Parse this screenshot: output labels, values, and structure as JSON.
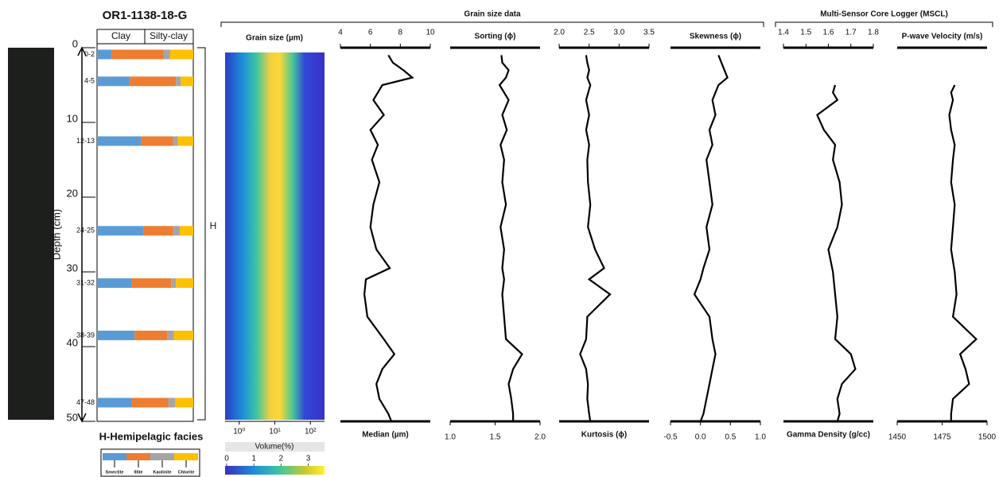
{
  "groups": [
    {
      "title": "Grain size data"
    },
    {
      "title": "Multi-Sensor Core Logger (MSCL)"
    }
  ],
  "chart_data": [
    {
      "type": "clay",
      "title": "OR1-1138-18-G",
      "ylabel": "Depth (cm)",
      "columns": [
        "Clay",
        "Silty-clay"
      ],
      "facies": "H",
      "caption": "H-Hemipelagic facies",
      "ylim": [
        0,
        50
      ],
      "yticks": [
        0,
        10,
        20,
        30,
        40,
        50
      ],
      "xlim": [
        0,
        100
      ],
      "categories": [
        "0-2",
        "4-5",
        "12-13",
        "24-25",
        "31-32",
        "38-39",
        "47-48"
      ],
      "y": [
        0.9,
        4.5,
        12.5,
        24.5,
        31.5,
        38.5,
        47.5
      ],
      "series": [
        {
          "name": "Smectite",
          "color": "#5b9bd5",
          "values": [
            15,
            34,
            46,
            48,
            36,
            39,
            36
          ]
        },
        {
          "name": "Illite",
          "color": "#ed7d31",
          "values": [
            54,
            48,
            33,
            31,
            41,
            34,
            38
          ]
        },
        {
          "name": "Kaolinite",
          "color": "#a5a5a5",
          "values": [
            7,
            5,
            5,
            7,
            5,
            7,
            7
          ]
        },
        {
          "name": "Chlorite",
          "color": "#ffc000",
          "values": [
            24,
            13,
            16,
            14,
            18,
            20,
            19
          ]
        }
      ]
    },
    {
      "type": "heatmap",
      "title": "Grain size (µm)",
      "xscale": "log",
      "xlim": [
        0.4,
        250
      ],
      "xticks": [
        {
          "value": 1,
          "label": "10⁰"
        },
        {
          "value": 10,
          "label": "10¹"
        },
        {
          "value": 100,
          "label": "10²"
        }
      ],
      "colorbar_label": "Volume(%)",
      "colorbar_lim": [
        0,
        3.6
      ],
      "colorbar_ticks": [
        0,
        1,
        2,
        3
      ]
    },
    {
      "type": "profile",
      "label": "Median (µm)",
      "axis_position": "top",
      "label_position": "bottom",
      "color": "#000000",
      "xlim": [
        4,
        10
      ],
      "xticks": [
        4,
        6,
        8,
        10
      ],
      "depth": [
        1,
        2,
        3,
        4,
        5,
        7,
        9,
        11,
        13,
        15,
        18,
        21,
        24,
        27,
        29.5,
        31,
        33,
        36,
        39,
        41,
        43,
        45,
        47,
        49,
        50
      ],
      "values": [
        7.2,
        7.5,
        8.2,
        8.8,
        6.8,
        6.2,
        6.9,
        6.0,
        6.5,
        6.1,
        6.6,
        6.2,
        6.0,
        6.4,
        7.3,
        5.7,
        5.6,
        5.8,
        6.9,
        7.6,
        6.8,
        6.4,
        6.6,
        7.2,
        7.4
      ]
    },
    {
      "type": "profile",
      "label": "Sorting (ϕ)",
      "axis_position": "bottom",
      "label_position": "top",
      "color": "#000000",
      "xlim": [
        1,
        2
      ],
      "xticks": [
        {
          "value": 1,
          "label": "1.0"
        },
        1.5,
        {
          "value": 2,
          "label": "2.0"
        }
      ],
      "depth": [
        1,
        2,
        3,
        4,
        5,
        7,
        9,
        11,
        13,
        15,
        18,
        21,
        24,
        27,
        29.5,
        31,
        33,
        36,
        39,
        41,
        43,
        45,
        47,
        49,
        50
      ],
      "values": [
        1.57,
        1.58,
        1.65,
        1.62,
        1.55,
        1.65,
        1.58,
        1.63,
        1.56,
        1.6,
        1.58,
        1.62,
        1.56,
        1.6,
        1.58,
        1.6,
        1.58,
        1.6,
        1.62,
        1.8,
        1.7,
        1.65,
        1.68,
        1.7,
        1.7
      ]
    },
    {
      "type": "profile",
      "label": "Kurtosis (ϕ)",
      "axis_position": "top",
      "label_position": "bottom",
      "color": "#000000",
      "xlim": [
        2,
        3.5
      ],
      "xticks": [
        {
          "value": 2,
          "label": "2.0"
        },
        2.5,
        {
          "value": 3,
          "label": "3.0"
        },
        3.5
      ],
      "depth": [
        1,
        2,
        3,
        4,
        5,
        7,
        9,
        11,
        13,
        15,
        18,
        21,
        24,
        27,
        29.5,
        31,
        33,
        36,
        39,
        41,
        43,
        45,
        47,
        49,
        50
      ],
      "values": [
        2.45,
        2.47,
        2.5,
        2.47,
        2.52,
        2.45,
        2.5,
        2.45,
        2.5,
        2.47,
        2.48,
        2.52,
        2.48,
        2.6,
        2.75,
        2.5,
        2.85,
        2.47,
        2.45,
        2.35,
        2.45,
        2.48,
        2.47,
        2.5,
        2.52
      ]
    },
    {
      "type": "profile",
      "label": "Skewness (ϕ)",
      "axis_position": "bottom",
      "label_position": "top",
      "color": "#000000",
      "xlim": [
        -0.5,
        1
      ],
      "xticks": [
        -0.5,
        {
          "value": 0,
          "label": "0.0"
        },
        0.5,
        {
          "value": 1,
          "label": "1.0"
        }
      ],
      "depth": [
        1,
        2,
        3,
        4,
        5,
        7,
        9,
        11,
        13,
        15,
        18,
        21,
        24,
        27,
        29.5,
        31,
        33,
        36,
        39,
        41,
        43,
        45,
        47,
        49,
        50
      ],
      "values": [
        0.3,
        0.35,
        0.4,
        0.45,
        0.3,
        0.2,
        0.25,
        0.15,
        0.2,
        0.1,
        0.15,
        0.2,
        0.1,
        0.15,
        0.05,
        0.0,
        -0.1,
        0.15,
        0.2,
        0.25,
        0.2,
        0.15,
        0.1,
        0.05,
        0.0
      ]
    },
    {
      "type": "profile",
      "label": "Gamma Density (g/cc)",
      "axis_position": "top",
      "label_position": "bottom",
      "color": "#000000",
      "xlim": [
        1.4,
        1.8
      ],
      "xticks": [
        1.4,
        1.5,
        1.6,
        1.7,
        1.8
      ],
      "depth": [
        5,
        6,
        7,
        9,
        11,
        13,
        15,
        18,
        21,
        24,
        27,
        30,
        33,
        36,
        39,
        41,
        43,
        45,
        47,
        49,
        50
      ],
      "values": [
        1.63,
        1.62,
        1.64,
        1.55,
        1.58,
        1.63,
        1.62,
        1.65,
        1.66,
        1.64,
        1.6,
        1.62,
        1.63,
        1.64,
        1.63,
        1.7,
        1.72,
        1.66,
        1.64,
        1.65,
        1.64
      ]
    },
    {
      "type": "profile",
      "label": "P-wave Velocity (m/s)",
      "axis_position": "bottom",
      "label_position": "top",
      "color": "#000000",
      "xlim": [
        1450,
        1500
      ],
      "xticks": [
        1450,
        1475,
        1500
      ],
      "depth": [
        5,
        6,
        7,
        9,
        11,
        13,
        15,
        18,
        21,
        24,
        27,
        30,
        33,
        36,
        39,
        41,
        43,
        45,
        47,
        49,
        50
      ],
      "values": [
        1482,
        1480,
        1481,
        1479,
        1480,
        1482,
        1481,
        1480,
        1482,
        1481,
        1480,
        1482,
        1483,
        1481,
        1494,
        1485,
        1488,
        1490,
        1481,
        1480,
        1480
      ]
    }
  ]
}
